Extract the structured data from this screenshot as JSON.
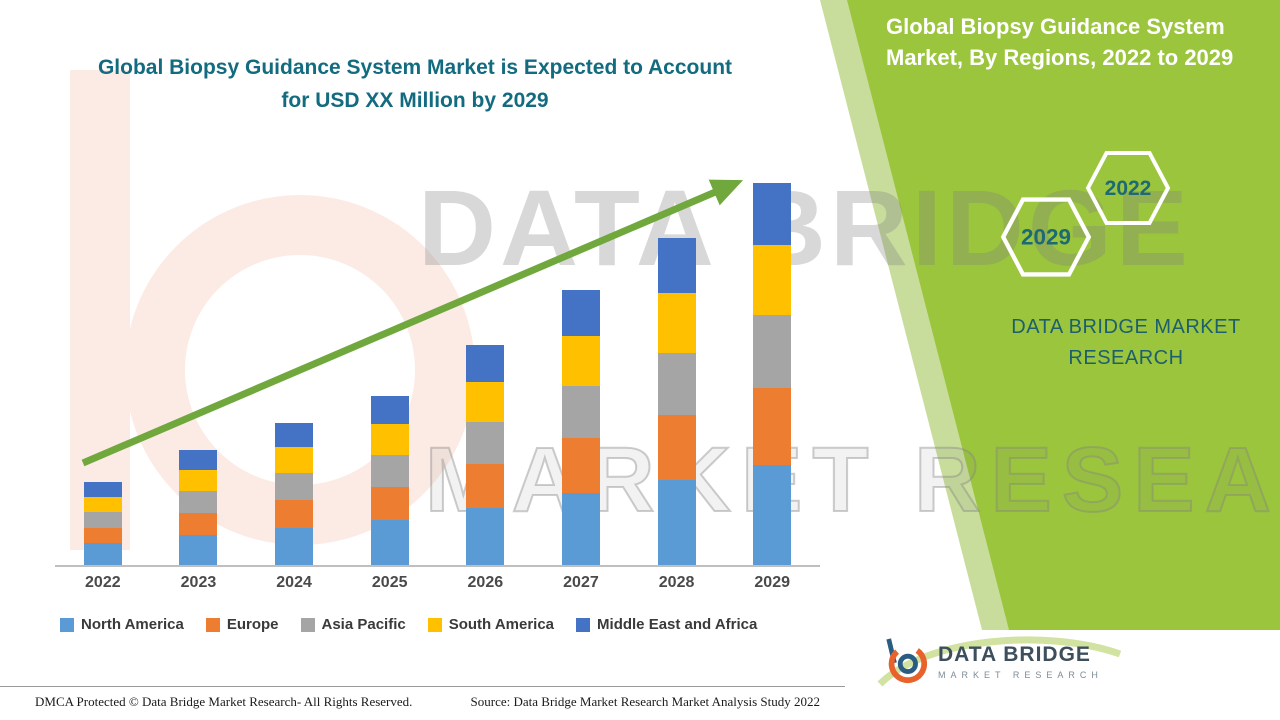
{
  "header": {
    "left_title_line1": "Global Biopsy Guidance System Market is Expected to Account",
    "left_title_line2": "for USD XX Million by 2029",
    "right_title_line1": "Global Biopsy Guidance System",
    "right_title_line2": "Market, By Regions, 2022 to 2029"
  },
  "side_panel": {
    "hexagon_back_label": "2029",
    "hexagon_front_label": "2022",
    "brand_line1": "DATA BRIDGE MARKET",
    "brand_line2": "RESEARCH"
  },
  "watermark": {
    "line1": "DATA BRIDGE",
    "line2": "MARKET RESEARCH"
  },
  "logo": {
    "name": "DATA BRIDGE",
    "tagline": "MARKET RESEARCH"
  },
  "footer": {
    "dmca": "DMCA Protected © Data Bridge Market Research- All Rights Reserved.",
    "source": "Source: Data Bridge Market Research Market Analysis Study 2022"
  },
  "colors": {
    "accent_green": "#9bc53d",
    "accent_green_light": "#c8dd9c",
    "title_teal": "#136b80",
    "brand_teal": "#1d5f6d",
    "arrow_green": "#70a83d",
    "north_america": "#5B9BD5",
    "europe": "#ED7D31",
    "asia_pacific": "#A5A5A5",
    "south_america": "#FFC000",
    "middle_east_africa": "#4472C4"
  },
  "chart_data": {
    "type": "bar",
    "stacked": true,
    "title": "Global Biopsy Guidance System Market, By Regions, 2022 to 2029",
    "categories": [
      "2022",
      "2023",
      "2024",
      "2025",
      "2026",
      "2027",
      "2028",
      "2029"
    ],
    "series": [
      {
        "name": "North America",
        "color": "#5B9BD5",
        "values": [
          22,
          30,
          37,
          45,
          57,
          72,
          85,
          100
        ]
      },
      {
        "name": "Europe",
        "color": "#ED7D31",
        "values": [
          15,
          22,
          28,
          33,
          44,
          55,
          65,
          77
        ]
      },
      {
        "name": "Asia Pacific",
        "color": "#A5A5A5",
        "values": [
          16,
          22,
          27,
          32,
          42,
          52,
          62,
          73
        ]
      },
      {
        "name": "South America",
        "color": "#FFC000",
        "values": [
          15,
          21,
          26,
          31,
          40,
          50,
          60,
          70
        ]
      },
      {
        "name": "Middle East and Africa",
        "color": "#4472C4",
        "values": [
          15,
          20,
          24,
          28,
          37,
          46,
          55,
          62
        ]
      }
    ],
    "xlabel": "",
    "ylabel": "",
    "y_axis_shown": false,
    "value_scale": "estimated relative units (actual values shown as USD XX Million)",
    "legend_position": "bottom",
    "trend_arrow": true
  }
}
